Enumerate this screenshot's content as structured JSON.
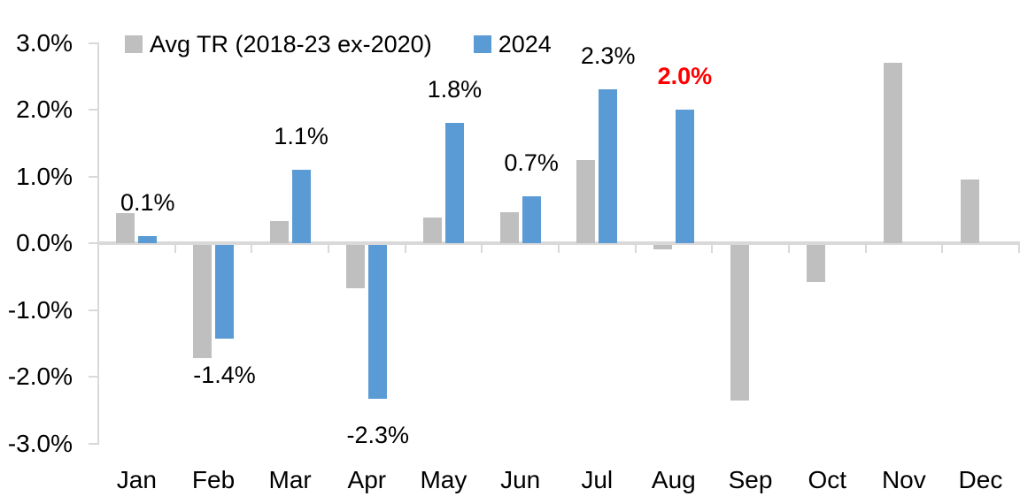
{
  "legend": {
    "series1_label": "Avg TR (2018-23 ex-2020)",
    "series2_label": "2024"
  },
  "y_axis": {
    "ticks": [
      "3.0%",
      "2.0%",
      "1.0%",
      "0.0%",
      "-1.0%",
      "-2.0%",
      "-3.0%"
    ],
    "tick_values": [
      3,
      2,
      1,
      0,
      -1,
      -2,
      -3
    ]
  },
  "colors": {
    "avg_series": "#BFBFBF",
    "series_2024": "#5B9BD5",
    "highlight_label": "#FF0000",
    "label_text": "#000000",
    "axis": "#D9D9D9"
  },
  "chart_data": {
    "type": "bar",
    "title": "",
    "xlabel": "",
    "ylabel": "",
    "ylim": [
      -3,
      3
    ],
    "y_tick_step": 1,
    "grid": false,
    "legend_position": "top",
    "categories": [
      "Jan",
      "Feb",
      "Mar",
      "Apr",
      "May",
      "Jun",
      "Jul",
      "Aug",
      "Sep",
      "Oct",
      "Nov",
      "Dec"
    ],
    "series": [
      {
        "name": "Avg TR (2018-23 ex-2020)",
        "color": "#BFBFBF",
        "values": [
          0.45,
          -1.7,
          0.33,
          -0.65,
          0.38,
          0.46,
          1.25,
          -0.07,
          -2.33,
          -0.55,
          2.7,
          0.95
        ]
      },
      {
        "name": "2024",
        "color": "#5B9BD5",
        "values": [
          0.1,
          -1.4,
          1.1,
          -2.3,
          1.8,
          0.7,
          2.3,
          2.0,
          null,
          null,
          null,
          null
        ]
      }
    ],
    "data_labels": [
      {
        "month": "Jan",
        "text": "0.1%",
        "color": "#000000",
        "bold": false
      },
      {
        "month": "Feb",
        "text": "-1.4%",
        "color": "#000000",
        "bold": false
      },
      {
        "month": "Mar",
        "text": "1.1%",
        "color": "#000000",
        "bold": false
      },
      {
        "month": "Apr",
        "text": "-2.3%",
        "color": "#000000",
        "bold": false
      },
      {
        "month": "May",
        "text": "1.8%",
        "color": "#000000",
        "bold": false
      },
      {
        "month": "Jun",
        "text": "0.7%",
        "color": "#000000",
        "bold": false
      },
      {
        "month": "Jul",
        "text": "2.3%",
        "color": "#000000",
        "bold": false
      },
      {
        "month": "Aug",
        "text": "2.0%",
        "color": "#FF0000",
        "bold": true
      }
    ]
  }
}
